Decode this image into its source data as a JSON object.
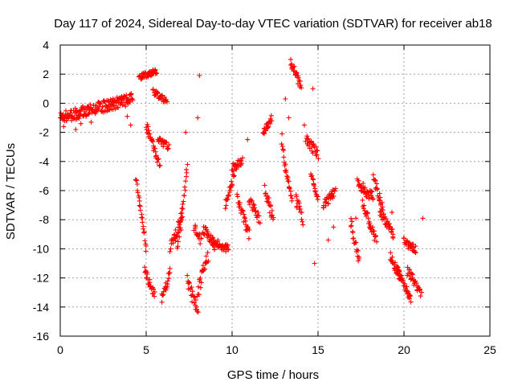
{
  "chart_data": {
    "type": "scatter",
    "title": "Day 117 of 2024, Sidereal Day-to-day VTEC variation (SDTVAR) for receiver ab18",
    "xlabel": "GPS time / hours",
    "ylabel": "SDTVAR / TECUs",
    "xlim": [
      0,
      25
    ],
    "ylim": [
      -16,
      4
    ],
    "x_ticks": [
      0,
      5,
      10,
      15,
      20,
      25
    ],
    "y_ticks": [
      -16,
      -14,
      -12,
      -10,
      -8,
      -6,
      -4,
      -2,
      0,
      2,
      4
    ],
    "grid": true,
    "marker": "+",
    "color": "#ff0000",
    "series": [
      {
        "name": "SDTVAR",
        "trend_points": [
          [
            0.0,
            -1.0
          ],
          [
            0.2,
            -1.6
          ],
          [
            0.4,
            -0.9
          ],
          [
            0.6,
            -0.8
          ],
          [
            0.9,
            -1.8
          ],
          [
            1.2,
            -1.4
          ],
          [
            1.5,
            -0.9
          ],
          [
            1.8,
            -1.3
          ],
          [
            2.1,
            -0.6
          ],
          [
            2.4,
            -0.5
          ],
          [
            2.7,
            -0.2
          ],
          [
            3.0,
            0.1
          ],
          [
            3.3,
            -0.3
          ],
          [
            3.6,
            0.2
          ],
          [
            3.9,
            -0.9
          ],
          [
            4.1,
            -1.5
          ]
        ],
        "segments": [
          {
            "x": [
              0.0,
              4.2
            ],
            "y": [
              -1.0,
              0.3
            ],
            "spread": 0.8
          },
          {
            "x": [
              4.4,
              5.0
            ],
            "y": [
              -5.0,
              -10.0
            ],
            "spread": 0.5
          },
          {
            "x": [
              4.9,
              5.5
            ],
            "y": [
              -11.5,
              -13.2
            ],
            "spread": 0.6
          },
          {
            "x": [
              4.6,
              5.6
            ],
            "y": [
              1.8,
              2.2
            ],
            "spread": 0.4
          },
          {
            "x": [
              5.0,
              5.8
            ],
            "y": [
              -1.5,
              -4.3
            ],
            "spread": 0.6
          },
          {
            "x": [
              5.7,
              6.3
            ],
            "y": [
              -2.5,
              -3.0
            ],
            "spread": 0.5
          },
          {
            "x": [
              5.4,
              6.2
            ],
            "y": [
              0.8,
              0.1
            ],
            "spread": 0.4
          },
          {
            "x": [
              5.9,
              6.4
            ],
            "y": [
              -13.5,
              -11.5
            ],
            "spread": 0.7
          },
          {
            "x": [
              6.4,
              7.1
            ],
            "y": [
              -10.0,
              -8.0
            ],
            "spread": 1.0
          },
          {
            "x": [
              6.8,
              7.4
            ],
            "y": [
              -9.5,
              -4.5
            ],
            "spread": 1.2
          },
          {
            "x": [
              7.4,
              8.0
            ],
            "y": [
              -12.0,
              -14.5
            ],
            "spread": 1.0
          },
          {
            "x": [
              7.8,
              8.2
            ],
            "y": [
              -8.5,
              -9.5
            ],
            "spread": 0.7
          },
          {
            "x": [
              8.0,
              8.6
            ],
            "y": [
              -13.0,
              -10.5
            ],
            "spread": 1.0
          },
          {
            "x": [
              8.3,
              9.0
            ],
            "y": [
              -8.5,
              -9.8
            ],
            "spread": 0.8
          },
          {
            "x": [
              8.8,
              9.8
            ],
            "y": [
              -9.5,
              -10.0
            ],
            "spread": 0.6
          },
          {
            "x": [
              9.6,
              10.1
            ],
            "y": [
              -7.0,
              -5.0
            ],
            "spread": 0.6
          },
          {
            "x": [
              10.0,
              10.6
            ],
            "y": [
              -4.5,
              -4.0
            ],
            "spread": 0.6
          },
          {
            "x": [
              10.3,
              11.0
            ],
            "y": [
              -6.5,
              -9.0
            ],
            "spread": 0.8
          },
          {
            "x": [
              11.0,
              11.6
            ],
            "y": [
              -6.5,
              -8.0
            ],
            "spread": 0.7
          },
          {
            "x": [
              11.8,
              12.3
            ],
            "y": [
              -2.0,
              -1.0
            ],
            "spread": 0.6
          },
          {
            "x": [
              11.9,
              12.4
            ],
            "y": [
              -6.0,
              -8.0
            ],
            "spread": 0.8
          },
          {
            "x": [
              12.9,
              13.5
            ],
            "y": [
              -3.0,
              -7.0
            ],
            "spread": 0.9
          },
          {
            "x": [
              13.4,
              14.0
            ],
            "y": [
              2.8,
              1.2
            ],
            "spread": 0.6
          },
          {
            "x": [
              13.7,
              14.1
            ],
            "y": [
              -6.5,
              -8.0
            ],
            "spread": 0.8
          },
          {
            "x": [
              14.3,
              15.0
            ],
            "y": [
              -2.5,
              -3.5
            ],
            "spread": 0.7
          },
          {
            "x": [
              14.6,
              15.0
            ],
            "y": [
              -5.0,
              -6.5
            ],
            "spread": 0.6
          },
          {
            "x": [
              15.3,
              16.0
            ],
            "y": [
              -7.0,
              -6.0
            ],
            "spread": 0.6
          },
          {
            "x": [
              16.9,
              17.4
            ],
            "y": [
              -8.0,
              -11.0
            ],
            "spread": 0.8
          },
          {
            "x": [
              17.3,
              18.2
            ],
            "y": [
              -5.5,
              -6.5
            ],
            "spread": 0.7
          },
          {
            "x": [
              17.6,
              18.4
            ],
            "y": [
              -7.0,
              -9.5
            ],
            "spread": 0.7
          },
          {
            "x": [
              18.2,
              18.8
            ],
            "y": [
              -5.0,
              -7.5
            ],
            "spread": 0.7
          },
          {
            "x": [
              18.6,
              19.4
            ],
            "y": [
              -7.5,
              -9.0
            ],
            "spread": 0.6
          },
          {
            "x": [
              19.2,
              19.8
            ],
            "y": [
              -10.5,
              -12.0
            ],
            "spread": 0.7
          },
          {
            "x": [
              19.6,
              20.4
            ],
            "y": [
              -11.5,
              -13.5
            ],
            "spread": 0.6
          },
          {
            "x": [
              20.0,
              20.7
            ],
            "y": [
              -9.5,
              -10.0
            ],
            "spread": 0.6
          },
          {
            "x": [
              20.2,
              21.0
            ],
            "y": [
              -11.5,
              -13.0
            ],
            "spread": 0.7
          }
        ],
        "isolated_points": [
          [
            8.1,
            1.9
          ],
          [
            8.0,
            -1.0
          ],
          [
            7.3,
            -2.0
          ],
          [
            13.1,
            0.3
          ],
          [
            13.3,
            -1.0
          ],
          [
            14.2,
            -1.5
          ],
          [
            10.9,
            -2.5
          ],
          [
            12.9,
            -2.1
          ],
          [
            14.7,
            1.0
          ],
          [
            14.8,
            -11.0
          ],
          [
            15.9,
            -8.5
          ],
          [
            19.3,
            -7.5
          ],
          [
            15.6,
            -9.4
          ],
          [
            17.2,
            -7.9
          ],
          [
            21.1,
            -7.9
          ]
        ]
      }
    ]
  }
}
